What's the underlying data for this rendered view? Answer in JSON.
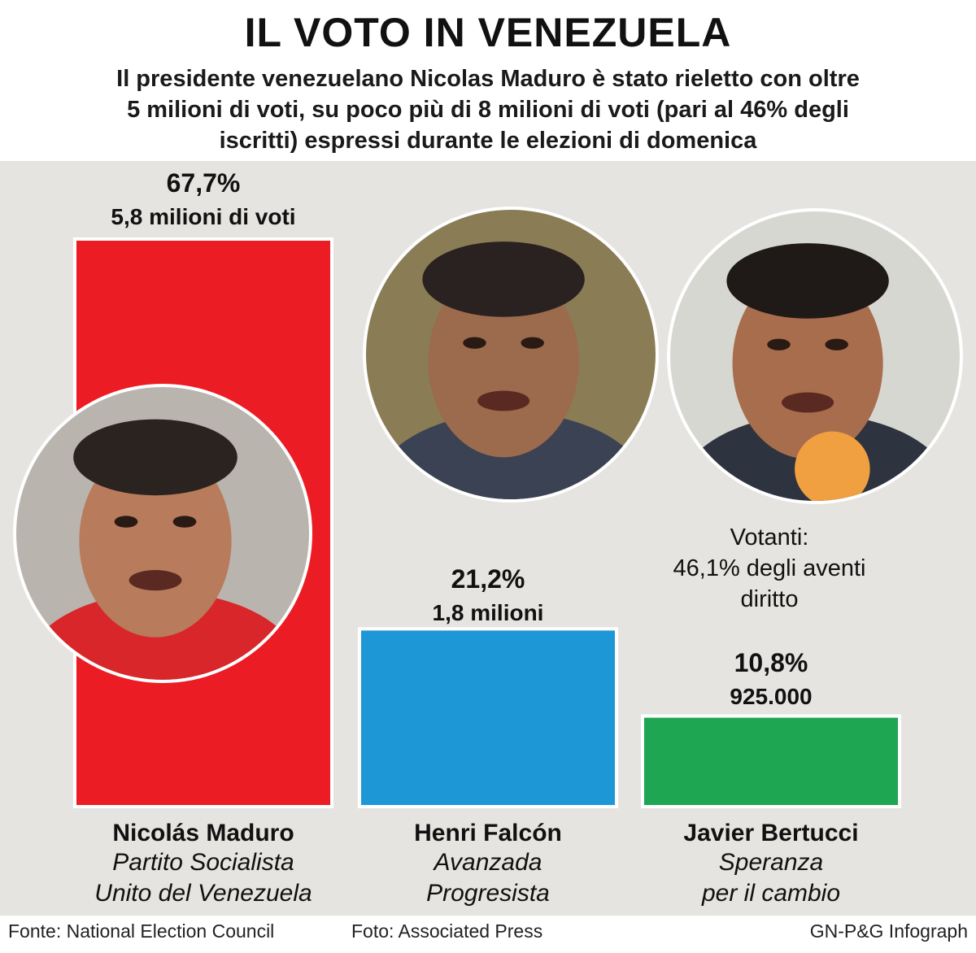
{
  "header": {
    "title": "IL VOTO IN VENEZUELA",
    "subtitle_lines": [
      "Il presidente venezuelano Nicolas Maduro è stato rieletto con oltre",
      "5 milioni di voti, su poco più di 8 milioni di voti (pari al 46% degli",
      "iscritti) espressi durante le elezioni di domenica"
    ]
  },
  "turnout": {
    "lines": [
      "Votanti:",
      "46,1% degli aventi",
      "diritto"
    ]
  },
  "footer": {
    "source": "Fonte: National Election Council",
    "photo": "Foto: Associated Press",
    "credit": "GN-P&G Infograph"
  },
  "colors": {
    "maduro": "#ec1c24",
    "falcon": "#1e97d6",
    "bertucci": "#1fa653",
    "panel": "#e6e4e1"
  },
  "chart_data": {
    "type": "bar",
    "categories": [
      "Nicolás Maduro",
      "Henri Falcón",
      "Javier Bertucci"
    ],
    "values": [
      67.7,
      21.2,
      10.8
    ],
    "value_labels": [
      "67,7%",
      "21,2%",
      "10,8%"
    ],
    "vote_labels": [
      "5,8 milioni di voti",
      "1,8 milioni",
      "925.000"
    ],
    "parties": [
      [
        "Partito Socialista",
        "Unito del Venezuela"
      ],
      [
        "Avanzada",
        "Progresista"
      ],
      [
        "Speranza",
        "per il cambio"
      ]
    ],
    "photo_icons": [
      "maduro-portrait",
      "falcon-portrait",
      "bertucci-portrait"
    ],
    "colors": [
      "#ec1c24",
      "#1e97d6",
      "#1fa653"
    ],
    "ylim": [
      0,
      67.7
    ],
    "xlabel": "",
    "ylabel": ""
  }
}
